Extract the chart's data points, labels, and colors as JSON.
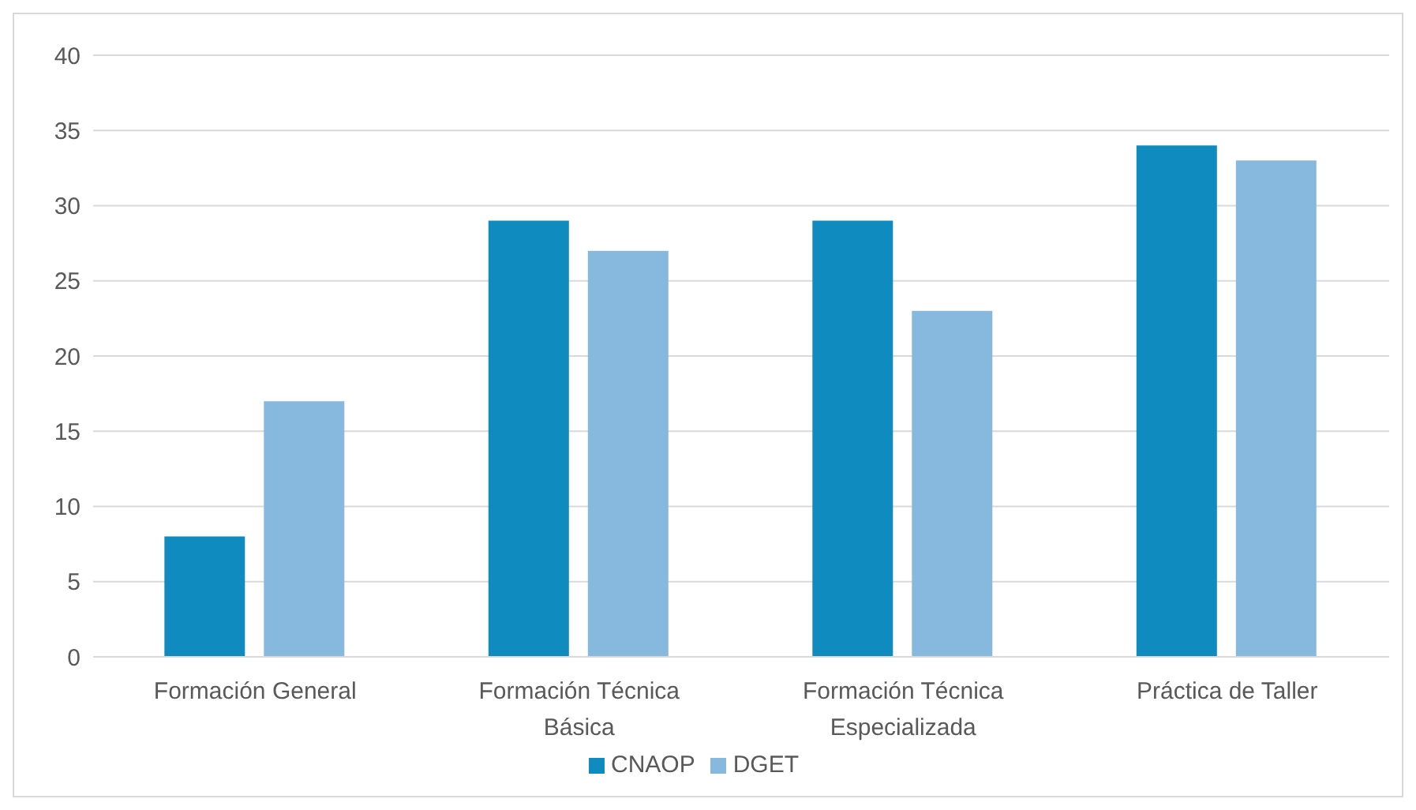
{
  "chart_data": {
    "type": "bar",
    "categories": [
      "Formación General",
      "Formación Técnica Básica",
      "Formación Técnica Especializada",
      "Práctica de Taller"
    ],
    "series": [
      {
        "name": "CNAOP",
        "color": "#0f8bbf",
        "values": [
          8,
          29,
          29,
          34
        ]
      },
      {
        "name": "DGET",
        "color": "#87b9df",
        "values": [
          17,
          27,
          23,
          33
        ]
      }
    ],
    "ylim": [
      0,
      40
    ],
    "yticks": [
      0,
      5,
      10,
      15,
      20,
      25,
      30,
      35,
      40
    ],
    "grid": "y",
    "legend": "bottom"
  }
}
